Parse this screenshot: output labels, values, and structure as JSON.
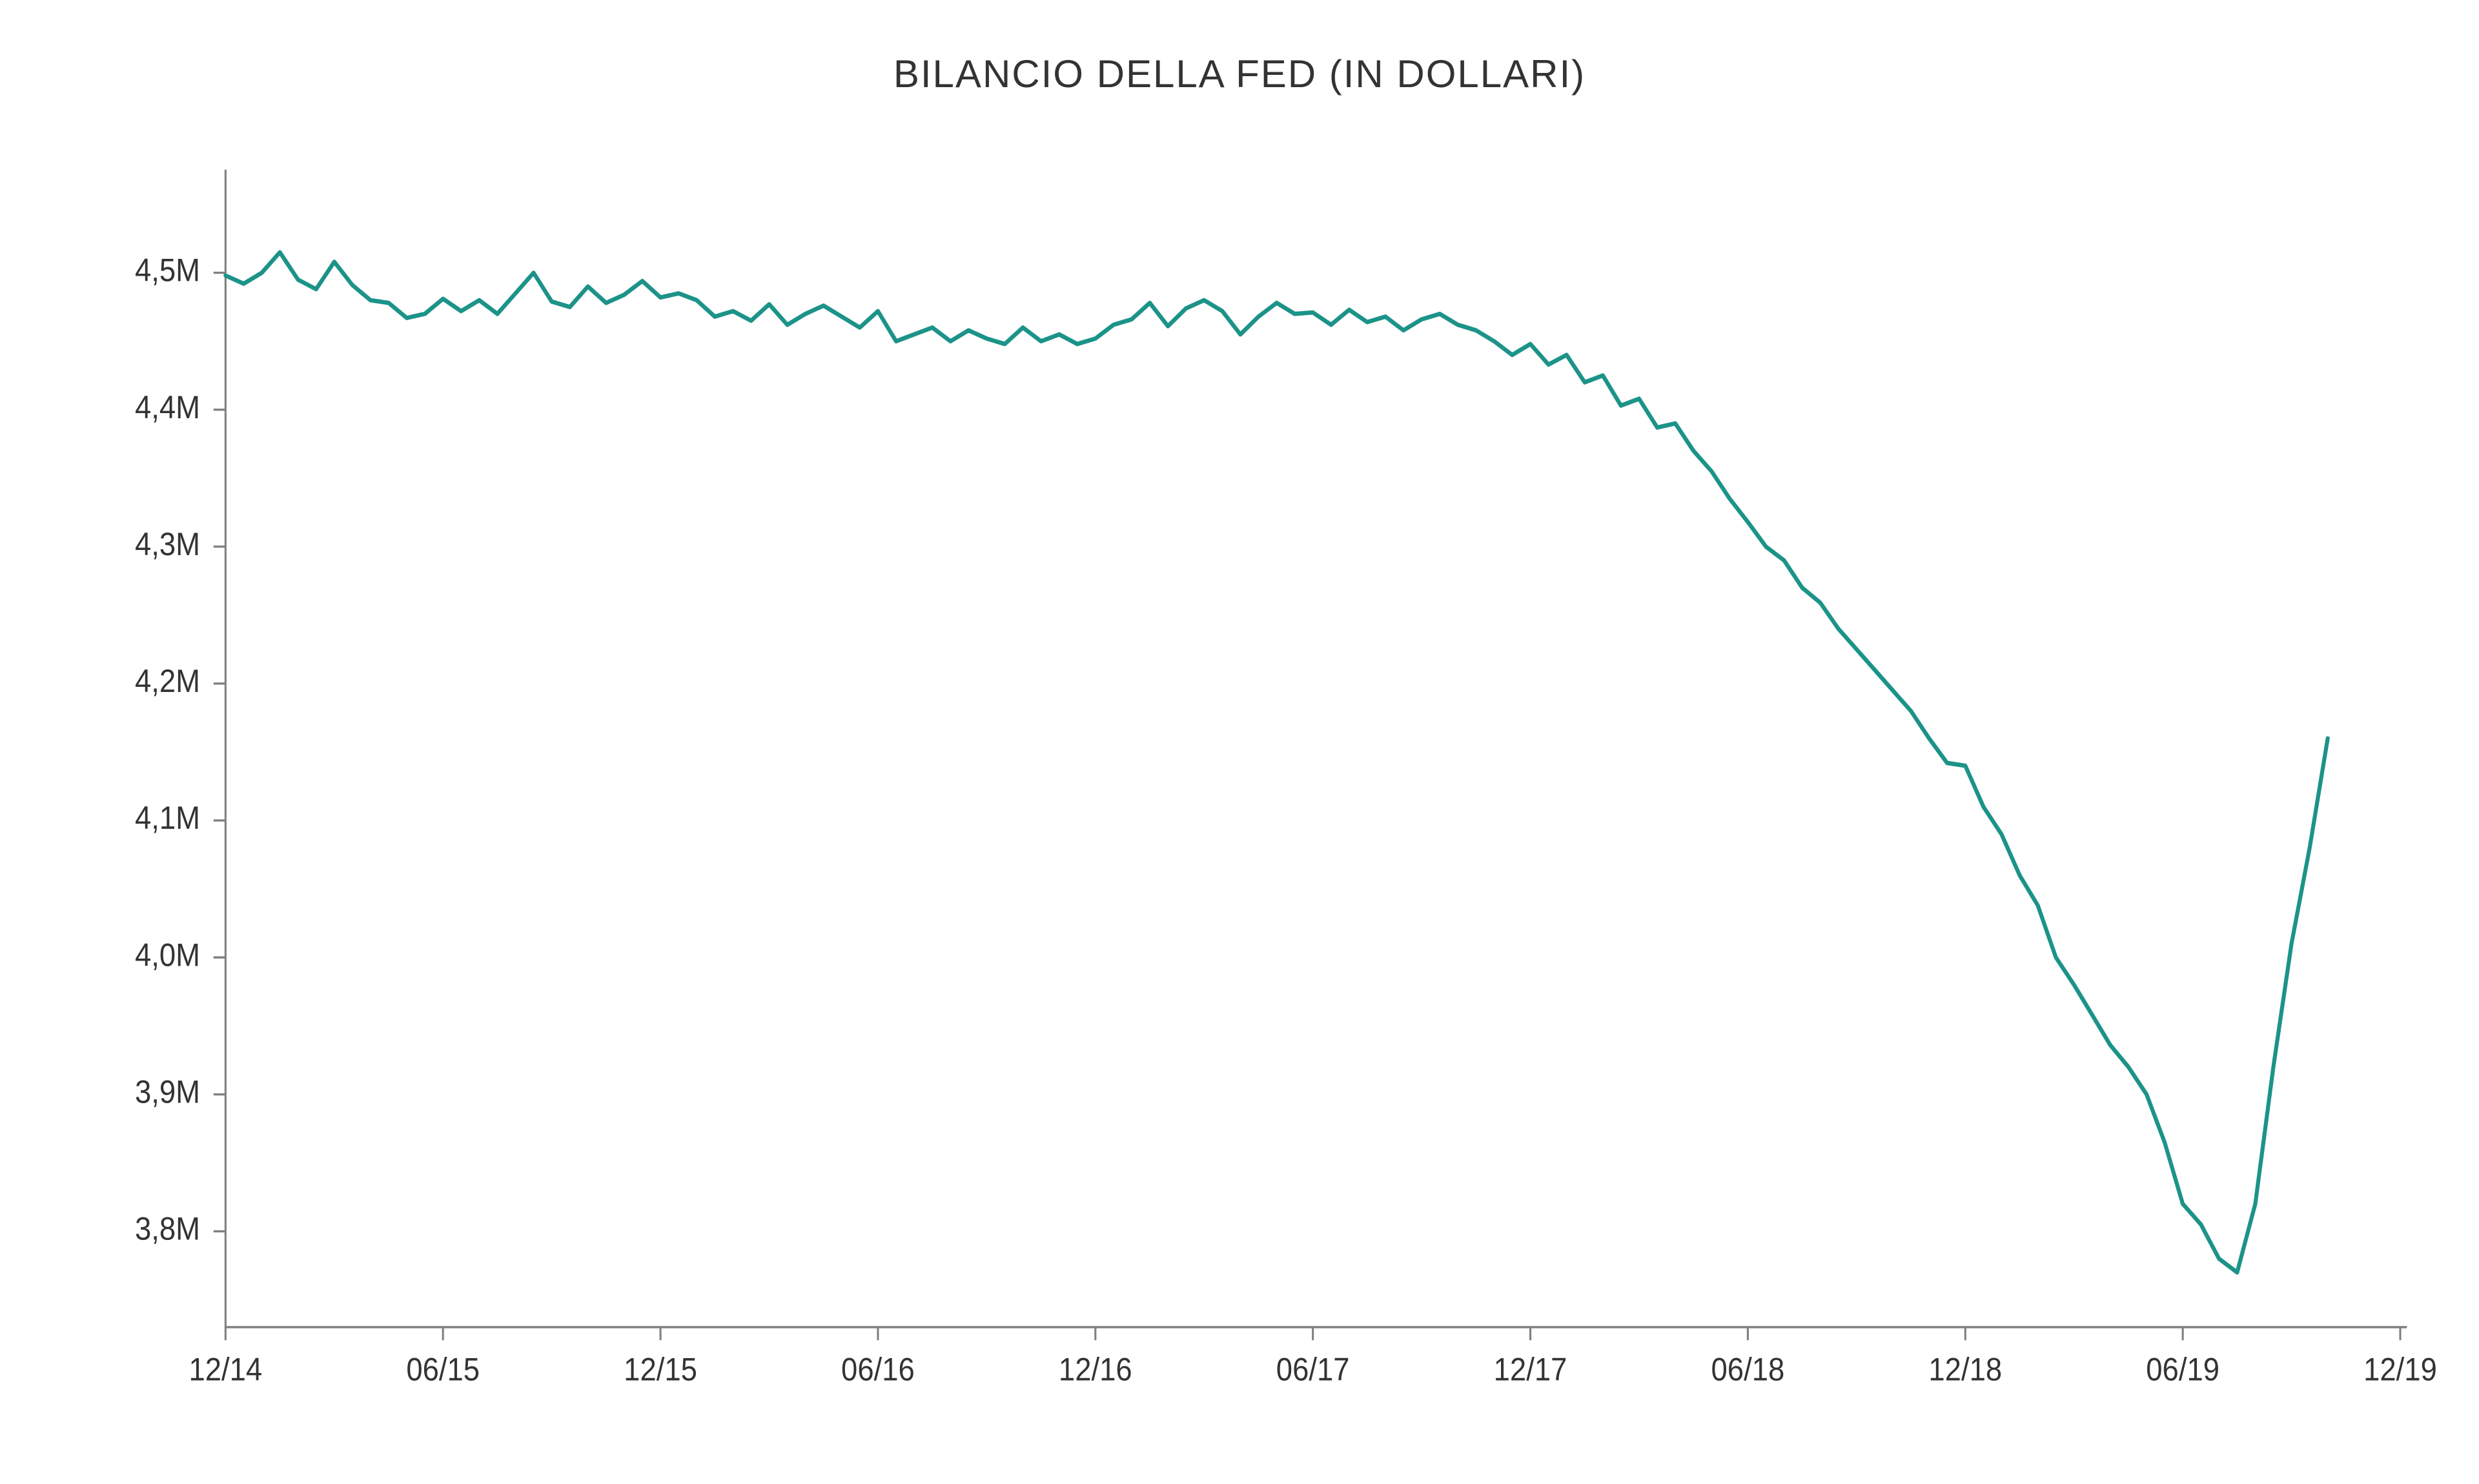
{
  "chart": {
    "type": "line",
    "title": "BILANCIO DELLA FED (IN DOLLARI)",
    "title_fontsize": 60,
    "title_color": "#333333",
    "background_color": "#ffffff",
    "axis_color": "#808080",
    "axis_line_width": 3,
    "tick_length": 18,
    "line_color": "#1c9389",
    "line_width": 6,
    "label_color": "#333333",
    "ylabel_fontsize": 44,
    "xlabel_fontsize": 44,
    "y_axis": {
      "min": 3.73,
      "max": 4.57,
      "ticks": [
        3.8,
        3.9,
        4.0,
        4.1,
        4.2,
        4.3,
        4.4,
        4.5
      ],
      "tick_labels": [
        "3,8M",
        "3,9M",
        "4,0M",
        "4,1M",
        "4,2M",
        "4,3M",
        "4,4M",
        "4,5M"
      ]
    },
    "x_axis": {
      "min": 0,
      "max": 60,
      "ticks": [
        0,
        6,
        12,
        18,
        24,
        30,
        36,
        42,
        48,
        54,
        60
      ],
      "tick_labels": [
        "12/14",
        "06/15",
        "12/15",
        "06/16",
        "12/16",
        "06/17",
        "12/17",
        "06/18",
        "12/18",
        "06/19",
        "12/19"
      ]
    },
    "series": {
      "x": [
        0,
        0.5,
        1,
        1.5,
        2,
        2.5,
        3,
        3.5,
        4,
        4.5,
        5,
        5.5,
        6,
        6.5,
        7,
        7.5,
        8,
        8.5,
        9,
        9.5,
        10,
        10.5,
        11,
        11.5,
        12,
        12.5,
        13,
        13.5,
        14,
        14.5,
        15,
        15.5,
        16,
        16.5,
        17,
        17.5,
        18,
        18.5,
        19,
        19.5,
        20,
        20.5,
        21,
        21.5,
        22,
        22.5,
        23,
        23.5,
        24,
        24.5,
        25,
        25.5,
        26,
        26.5,
        27,
        27.5,
        28,
        28.5,
        29,
        29.5,
        30,
        30.5,
        31,
        31.5,
        32,
        32.5,
        33,
        33.5,
        34,
        34.5,
        35,
        35.5,
        36,
        36.5,
        37,
        37.5,
        38,
        38.5,
        39,
        39.5,
        40,
        40.5,
        41,
        41.5,
        42,
        42.5,
        43,
        43.5,
        44,
        44.5,
        45,
        45.5,
        46,
        46.5,
        47,
        47.5,
        48,
        48.5,
        49,
        49.5,
        50,
        50.5,
        51,
        51.5,
        52,
        52.5,
        53,
        53.5,
        54,
        54.5,
        55,
        55.5,
        56,
        56.5,
        57,
        57.5,
        58
      ],
      "y": [
        4.498,
        4.492,
        4.5,
        4.515,
        4.495,
        4.488,
        4.508,
        4.491,
        4.48,
        4.478,
        4.467,
        4.47,
        4.481,
        4.472,
        4.48,
        4.47,
        4.485,
        4.5,
        4.479,
        4.475,
        4.49,
        4.478,
        4.484,
        4.494,
        4.482,
        4.485,
        4.48,
        4.468,
        4.472,
        4.465,
        4.477,
        4.462,
        4.47,
        4.476,
        4.468,
        4.46,
        4.472,
        4.45,
        4.455,
        4.46,
        4.45,
        4.458,
        4.452,
        4.448,
        4.46,
        4.45,
        4.455,
        4.448,
        4.452,
        4.462,
        4.466,
        4.478,
        4.461,
        4.474,
        4.48,
        4.472,
        4.455,
        4.468,
        4.478,
        4.47,
        4.471,
        4.462,
        4.473,
        4.464,
        4.468,
        4.458,
        4.466,
        4.47,
        4.462,
        4.458,
        4.45,
        4.44,
        4.448,
        4.433,
        4.44,
        4.42,
        4.425,
        4.403,
        4.408,
        4.387,
        4.39,
        4.37,
        4.355,
        4.335,
        4.318,
        4.3,
        4.29,
        4.27,
        4.259,
        4.24,
        4.225,
        4.21,
        4.195,
        4.18,
        4.16,
        4.142,
        4.14,
        4.11,
        4.09,
        4.06,
        4.038,
        4.0,
        3.98,
        3.958,
        3.936,
        3.92,
        3.9,
        3.865,
        3.82,
        3.805,
        3.78,
        3.77,
        3.82,
        3.92,
        4.01,
        4.08,
        4.16
      ]
    }
  }
}
